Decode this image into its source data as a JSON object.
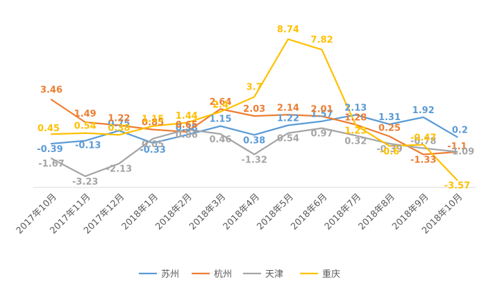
{
  "chart_data": {
    "type": "line",
    "categories": [
      "2017年10月",
      "2017年11月",
      "2017年12月",
      "2018年1月",
      "2018年2月",
      "2018年3月",
      "2018年4月",
      "2018年5月",
      "2018年6月",
      "2018年7月",
      "2018年8月",
      "2018年9月",
      "2018年10月"
    ],
    "ylim": [
      -6,
      10
    ],
    "grid": false,
    "legend_position": "bottom",
    "series": [
      {
        "name": "苏州",
        "color": "#5B9BD5",
        "values": [
          -0.39,
          -0.13,
          0.75,
          -0.33,
          0.38,
          1.15,
          0.38,
          1.22,
          1.57,
          2.13,
          1.31,
          1.92,
          0.2
        ],
        "labels": [
          "-0.39",
          "-0.13",
          "0.75",
          "-0.33",
          "0.38",
          "1.15",
          "0.38",
          "1.22",
          "1.57",
          "2.13",
          "1.31",
          "1.92",
          "0.2"
        ]
      },
      {
        "name": "杭州",
        "color": "#ED7D31",
        "values": [
          3.46,
          1.49,
          1.22,
          0.85,
          0.65,
          2.64,
          2.03,
          2.14,
          2.01,
          1.28,
          0.25,
          -1.33,
          -1.1
        ],
        "labels": [
          "3.46",
          "1.49",
          "1.22",
          "0.85",
          "0.65",
          "2.64",
          "2.03",
          "2.14",
          "2.01",
          "1.28",
          "0.25",
          "-1.33",
          "-1.1"
        ]
      },
      {
        "name": "天津",
        "color": "#A5A5A5",
        "values": [
          -1.67,
          -3.23,
          -2.13,
          0.05,
          0.86,
          0.46,
          -1.32,
          0.54,
          0.97,
          0.32,
          -0.39,
          -0.78,
          -1.09
        ],
        "labels": [
          "-1.67",
          "-3.23",
          "-2.13",
          "0.05",
          "0.86",
          "0.46",
          "-1.32",
          "0.54",
          "0.97",
          "0.32",
          "-0.39",
          "-0.78",
          "-1.09"
        ]
      },
      {
        "name": "重庆",
        "color": "#FFC000",
        "values": [
          0.45,
          0.54,
          0.38,
          1.15,
          1.44,
          2.4,
          3.7,
          8.74,
          7.82,
          1.23,
          -0.6,
          -0.47,
          -3.57
        ],
        "labels": [
          "0.45",
          "0.54",
          "0.38",
          "1.15",
          "1.44",
          "2.4",
          "3.7",
          "8.74",
          "7.82",
          "1.23",
          "-0.6",
          "-0.47",
          "-3.57"
        ]
      }
    ]
  }
}
